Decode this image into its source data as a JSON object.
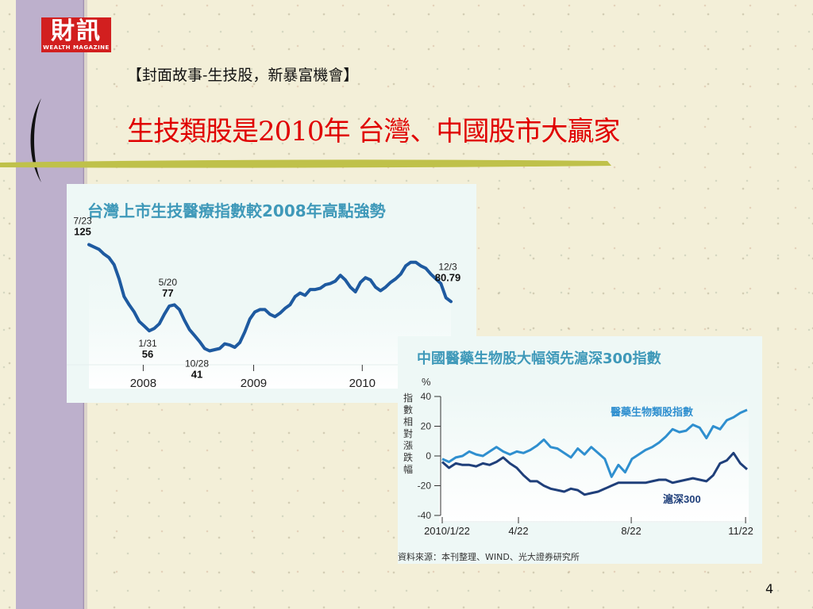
{
  "logo": {
    "text": "財訊",
    "subtext": "WEALTH MAGAZINE"
  },
  "slide": {
    "subtitle": "【封面故事-生技股，新暴富機會】",
    "title": "生技類股是2010年 台灣、中國股市大贏家",
    "page_number": "4"
  },
  "colors": {
    "title": "#e00000",
    "chart_title": "#3f99b9",
    "line": "#1e5aa0",
    "line2": "#1f3f7a",
    "accent_line": "#bfc14a"
  },
  "chart_data": [
    {
      "type": "line",
      "title": "台灣上市生技醫療指數較2008年高點強勢",
      "x_tick_labels": [
        "2008",
        "2009",
        "2010"
      ],
      "series": [
        {
          "values": [
            129,
            127,
            125,
            121,
            118,
            112,
            100,
            85,
            78,
            72,
            64,
            60,
            56,
            58,
            62,
            70,
            77,
            78,
            74,
            65,
            57,
            52,
            47,
            41,
            39,
            40,
            41,
            45,
            44,
            42,
            46,
            55,
            66,
            72,
            74,
            74,
            70,
            68,
            71,
            75,
            78,
            85,
            88,
            86,
            91,
            91,
            92,
            95,
            96,
            98,
            103,
            99,
            93,
            89,
            97,
            101,
            99,
            93,
            90,
            93,
            97,
            100,
            104,
            111,
            114,
            114,
            111,
            109,
            104,
            100,
            96,
            84,
            80.79
          ]
        }
      ],
      "annotations": [
        {
          "date": "7/23",
          "value": "125"
        },
        {
          "date": "1/31",
          "value": "56"
        },
        {
          "date": "5/20",
          "value": "77"
        },
        {
          "date": "10/28",
          "value": "41"
        },
        {
          "date": "12/3",
          "value": "80.79"
        }
      ]
    },
    {
      "type": "line",
      "title": "中國醫藥生物股大幅領先滬深300指數",
      "y_unit": "%",
      "ylabel": "指數相對漲跌幅",
      "ylim": [
        -40,
        40
      ],
      "y_ticks": [
        40,
        20,
        0,
        -20,
        -40
      ],
      "x_tick_labels": [
        "2010/1/22",
        "4/22",
        "8/22",
        "11/22"
      ],
      "source": "資料來源：本刊整理、WIND、光大證券研究所",
      "series": [
        {
          "name": "醫藥生物類股指數",
          "values": [
            -2,
            -4,
            -1,
            0,
            3,
            1,
            0,
            3,
            6,
            3,
            1,
            3,
            2,
            4,
            7,
            11,
            6,
            5,
            2,
            -1,
            5,
            1,
            6,
            2,
            -2,
            -14,
            -6,
            -11,
            -2,
            1,
            4,
            6,
            9,
            13,
            18,
            16,
            17,
            21,
            19,
            12,
            20,
            18,
            24,
            26,
            29,
            31
          ]
        },
        {
          "name": "滬深300",
          "values": [
            -4,
            -8,
            -5,
            -6,
            -6,
            -7,
            -5,
            -6,
            -4,
            -1,
            -5,
            -8,
            -13,
            -17,
            -17,
            -20,
            -22,
            -23,
            -24,
            -22,
            -23,
            -26,
            -25,
            -24,
            -22,
            -20,
            -18,
            -18,
            -18,
            -18,
            -18,
            -17,
            -16,
            -16,
            -18,
            -17,
            -16,
            -15,
            -16,
            -17,
            -13,
            -5,
            -3,
            2,
            -5,
            -9
          ]
        }
      ]
    }
  ]
}
